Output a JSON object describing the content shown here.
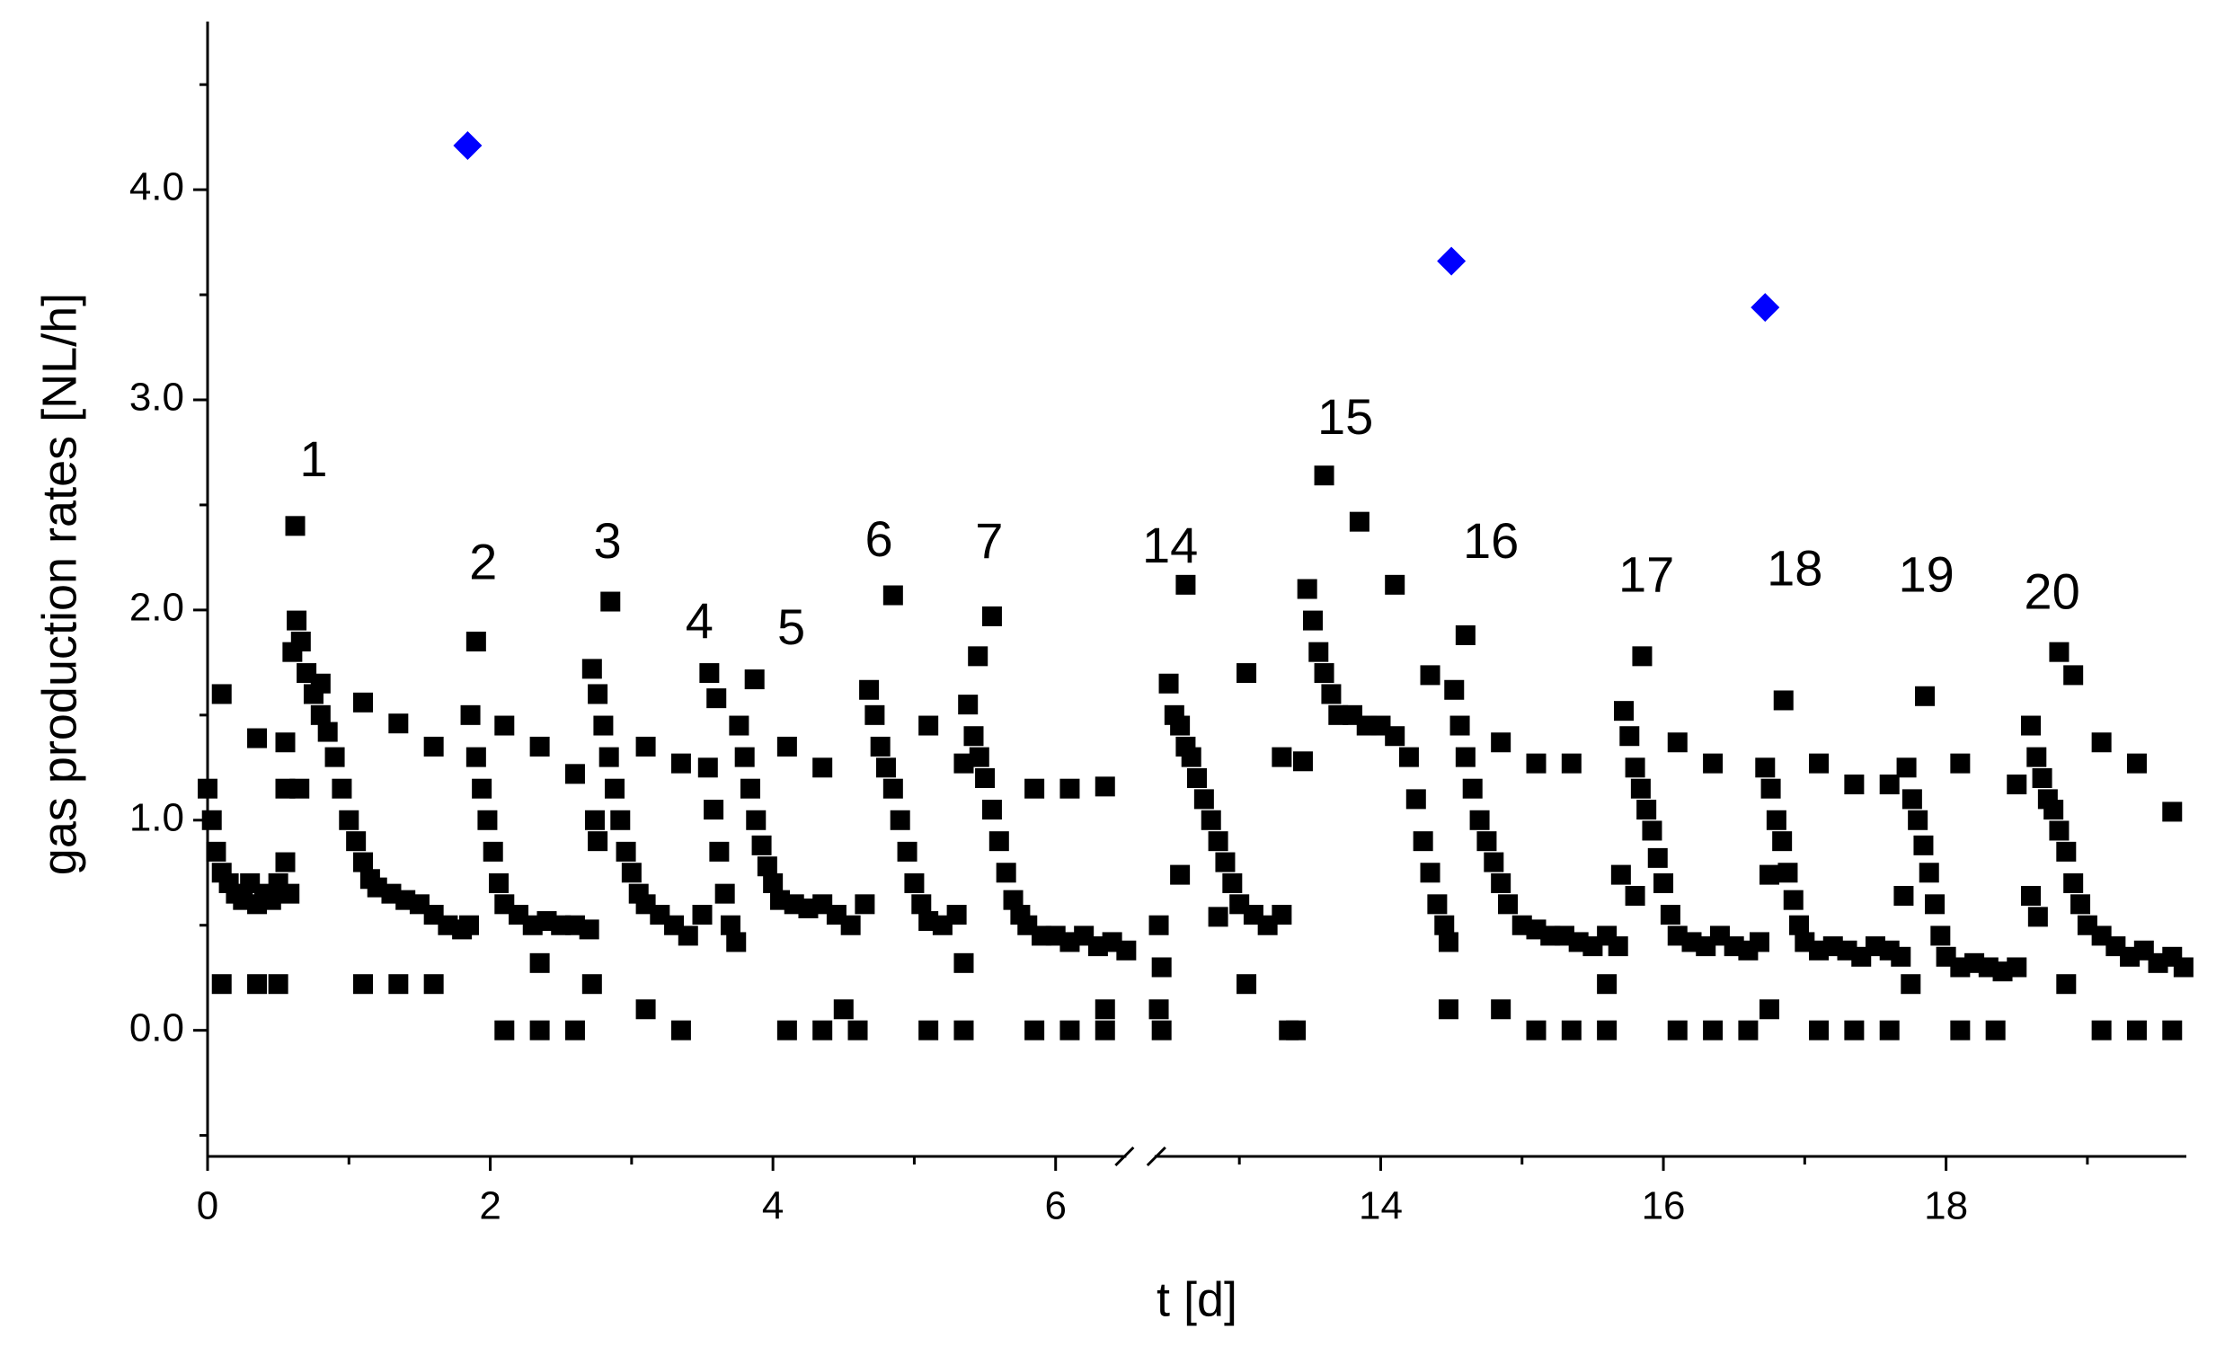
{
  "chart_data": {
    "type": "scatter",
    "xlabel": "t [d]",
    "ylabel": "gas production rates [NL/h]",
    "xlim": [
      0,
      19.7
    ],
    "xbreak": [
      6.5,
      12.4
    ],
    "ylim": [
      -0.6,
      4.8
    ],
    "xticks": [
      0,
      2,
      4,
      6,
      14,
      16,
      18
    ],
    "xminorticks": [
      1,
      3,
      5,
      13,
      15,
      17,
      19
    ],
    "yticks": [
      {
        "value": 0,
        "label": "0.0"
      },
      {
        "value": 1,
        "label": "1.0"
      },
      {
        "value": 2,
        "label": "2.0"
      },
      {
        "value": 3,
        "label": "3.0"
      },
      {
        "value": 4,
        "label": "4.0"
      }
    ],
    "yminorticks": [
      -0.5,
      0.5,
      1.5,
      2.5,
      3.5,
      4.5
    ],
    "series": [
      {
        "color": "#000000",
        "marker": "square",
        "x": [
          0,
          0.03,
          0.06,
          0.1,
          0.15,
          0.2,
          0.25,
          0.3,
          0.35,
          0.4,
          0.45,
          0.5,
          0.55,
          0.58,
          0.1,
          0.1,
          0.35,
          0.35,
          0.5,
          0.55,
          0.55,
          0.6,
          0.63,
          0.66,
          0.7,
          0.75,
          0.8,
          0.85,
          0.9,
          0.95,
          1.0,
          1.05,
          1.1,
          1.15,
          1.2,
          1.3,
          1.4,
          1.5,
          1.6,
          1.7,
          1.8,
          1.85,
          0.62,
          0.65,
          0.8,
          1.1,
          1.1,
          1.35,
          1.35,
          1.6,
          1.6,
          1.86,
          1.9,
          1.94,
          1.98,
          2.02,
          2.06,
          2.1,
          2.2,
          2.3,
          2.4,
          2.5,
          2.6,
          2.7,
          1.9,
          2.1,
          2.1,
          2.35,
          2.35,
          2.35,
          2.6,
          2.6,
          2.72,
          2.72,
          2.76,
          2.8,
          2.84,
          2.88,
          2.92,
          2.96,
          3.0,
          3.05,
          3.1,
          3.2,
          3.3,
          3.4,
          3.5,
          2.85,
          2.74,
          2.76,
          3.1,
          3.1,
          3.35,
          3.35,
          3.54,
          3.58,
          3.62,
          3.66,
          3.7,
          3.74,
          3.55,
          3.6,
          3.76,
          3.8,
          3.84,
          3.88,
          3.92,
          3.96,
          4.0,
          4.05,
          4.15,
          4.25,
          4.35,
          4.45,
          4.55,
          4.65,
          3.87,
          4.1,
          4.1,
          4.35,
          4.35,
          4.5,
          4.6,
          4.68,
          4.72,
          4.76,
          4.8,
          4.85,
          4.9,
          4.95,
          5.0,
          5.05,
          5.1,
          5.2,
          5.3,
          4.85,
          5.1,
          5.1,
          5.35,
          5.35,
          5.35,
          5.38,
          5.42,
          5.46,
          5.5,
          5.55,
          5.6,
          5.65,
          5.7,
          5.75,
          5.8,
          5.9,
          6.0,
          6.1,
          6.2,
          6.3,
          6.4,
          6.5,
          5.45,
          5.55,
          5.85,
          5.85,
          6.1,
          6.1,
          6.35,
          6.35,
          6.35,
          12.43,
          12.43,
          12.45,
          12.45,
          12.5,
          12.54,
          12.58,
          12.62,
          12.66,
          12.7,
          12.75,
          12.8,
          12.85,
          12.9,
          12.95,
          13.0,
          13.1,
          13.2,
          13.3,
          12.58,
          12.62,
          12.85,
          13.05,
          13.05,
          13.3,
          13.35,
          13.4,
          13.45,
          13.48,
          13.52,
          13.56,
          13.6,
          13.65,
          13.7,
          13.8,
          13.9,
          14.0,
          14.1,
          14.2,
          14.25,
          14.3,
          14.35,
          14.4,
          14.45,
          13.6,
          13.85,
          14.1,
          14.35,
          14.48,
          14.48,
          14.52,
          14.56,
          14.6,
          14.65,
          14.7,
          14.75,
          14.8,
          14.85,
          14.9,
          15.0,
          15.1,
          15.2,
          15.3,
          15.4,
          15.5,
          15.6,
          15.68,
          14.6,
          14.85,
          14.85,
          15.1,
          15.1,
          15.35,
          15.35,
          15.6,
          15.6,
          15.72,
          15.76,
          15.8,
          15.84,
          15.88,
          15.92,
          15.96,
          16.0,
          16.05,
          16.1,
          16.2,
          16.3,
          16.4,
          16.5,
          16.6,
          16.68,
          15.85,
          15.7,
          15.8,
          16.1,
          16.1,
          16.35,
          16.35,
          16.6,
          16.72,
          16.76,
          16.8,
          16.84,
          16.88,
          16.92,
          16.96,
          17.0,
          17.1,
          17.2,
          17.3,
          17.4,
          17.5,
          17.6,
          17.68,
          16.85,
          16.75,
          16.75,
          17.1,
          17.1,
          17.35,
          17.35,
          17.6,
          17.6,
          17.72,
          17.76,
          17.8,
          17.84,
          17.88,
          17.92,
          17.96,
          18.0,
          18.1,
          18.2,
          18.3,
          18.4,
          18.5,
          17.85,
          17.7,
          17.75,
          18.1,
          18.1,
          18.35,
          18.5,
          18.6,
          18.64,
          18.68,
          18.72,
          18.76,
          18.8,
          18.85,
          18.9,
          18.95,
          19.0,
          19.1,
          19.2,
          19.3,
          19.4,
          19.5,
          19.6,
          19.68,
          18.8,
          18.9,
          18.6,
          18.65,
          18.85,
          19.1,
          19.1,
          19.35,
          19.35,
          19.6,
          19.6
        ],
        "values": [
          1.15,
          1.0,
          0.85,
          0.75,
          0.7,
          0.65,
          0.62,
          0.7,
          0.6,
          0.65,
          0.62,
          0.7,
          0.8,
          0.65,
          1.6,
          0.22,
          1.39,
          0.22,
          0.22,
          1.37,
          1.15,
          1.8,
          1.95,
          1.85,
          1.7,
          1.6,
          1.5,
          1.42,
          1.3,
          1.15,
          1.0,
          0.9,
          0.8,
          0.72,
          0.68,
          0.65,
          0.62,
          0.6,
          0.55,
          0.5,
          0.48,
          0.5,
          2.4,
          1.15,
          1.65,
          1.56,
          0.22,
          1.46,
          0.22,
          1.35,
          0.22,
          1.5,
          1.3,
          1.15,
          1.0,
          0.85,
          0.7,
          0.6,
          0.55,
          0.5,
          0.52,
          0.5,
          0.5,
          0.48,
          1.85,
          0.0,
          1.45,
          1.35,
          0.0,
          0.32,
          1.22,
          0.0,
          0.22,
          1.72,
          1.6,
          1.45,
          1.3,
          1.15,
          1.0,
          0.85,
          0.75,
          0.65,
          0.6,
          0.55,
          0.5,
          0.45,
          0.55,
          2.04,
          1.0,
          0.9,
          1.35,
          0.1,
          1.27,
          0.0,
          1.25,
          1.05,
          0.85,
          0.65,
          0.5,
          0.42,
          1.7,
          1.58,
          1.45,
          1.3,
          1.15,
          1.0,
          0.88,
          0.78,
          0.7,
          0.62,
          0.6,
          0.58,
          0.6,
          0.55,
          0.5,
          0.6,
          1.67,
          1.35,
          0.0,
          1.25,
          0.0,
          0.1,
          0.0,
          1.62,
          1.5,
          1.35,
          1.25,
          1.15,
          1.0,
          0.85,
          0.7,
          0.6,
          0.52,
          0.5,
          0.55,
          2.07,
          1.45,
          0.0,
          1.27,
          0.0,
          0.32,
          1.55,
          1.4,
          1.3,
          1.2,
          1.05,
          0.9,
          0.75,
          0.62,
          0.55,
          0.5,
          0.45,
          0.45,
          0.42,
          0.45,
          0.4,
          0.42,
          0.38,
          1.78,
          1.97,
          1.15,
          0.0,
          1.15,
          0.0,
          1.16,
          0.1,
          0.0,
          0.5,
          0.1,
          0.0,
          0.3,
          1.65,
          1.5,
          1.45,
          1.35,
          1.3,
          1.2,
          1.1,
          1.0,
          0.9,
          0.8,
          0.7,
          0.6,
          0.55,
          0.5,
          0.55,
          0.74,
          2.12,
          0.54,
          1.7,
          0.22,
          1.3,
          0.0,
          0.0,
          1.28,
          2.1,
          1.95,
          1.8,
          1.7,
          1.6,
          1.5,
          1.5,
          1.45,
          1.45,
          1.4,
          1.3,
          1.1,
          0.9,
          0.75,
          0.6,
          0.5,
          2.64,
          2.42,
          2.12,
          1.69,
          0.1,
          0.42,
          1.62,
          1.45,
          1.3,
          1.15,
          1.0,
          0.9,
          0.8,
          0.7,
          0.6,
          0.5,
          0.48,
          0.45,
          0.45,
          0.42,
          0.4,
          0.45,
          0.4,
          1.88,
          1.37,
          0.1,
          1.27,
          0.0,
          1.27,
          0.0,
          0.0,
          0.22,
          1.52,
          1.4,
          1.25,
          1.15,
          1.05,
          0.95,
          0.82,
          0.7,
          0.55,
          0.45,
          0.42,
          0.4,
          0.45,
          0.4,
          0.38,
          0.42,
          1.78,
          0.74,
          0.64,
          1.37,
          0.0,
          1.27,
          0.0,
          0.0,
          1.25,
          1.15,
          1.0,
          0.9,
          0.75,
          0.62,
          0.5,
          0.42,
          0.38,
          0.4,
          0.38,
          0.35,
          0.4,
          0.38,
          0.35,
          1.57,
          0.1,
          0.74,
          1.27,
          0.0,
          1.17,
          0.0,
          0.0,
          1.17,
          1.25,
          1.1,
          1.0,
          0.88,
          0.75,
          0.6,
          0.45,
          0.35,
          0.3,
          0.32,
          0.3,
          0.28,
          0.3,
          1.59,
          0.64,
          0.22,
          1.27,
          0.0,
          0.0,
          1.17,
          1.45,
          1.3,
          1.2,
          1.1,
          1.05,
          0.95,
          0.85,
          0.7,
          0.6,
          0.5,
          0.45,
          0.4,
          0.35,
          0.38,
          0.32,
          0.35,
          0.3,
          1.8,
          1.69,
          0.64,
          0.54,
          0.22,
          1.37,
          0.0,
          1.27,
          0.0,
          1.04,
          0.0
        ]
      },
      {
        "color": "#0000ff",
        "marker": "diamond",
        "x": [
          1.84,
          14.5,
          16.72
        ],
        "values": [
          4.21,
          3.66,
          3.44
        ]
      }
    ],
    "annotations": [
      {
        "label": "1",
        "x": 0.75,
        "y": 2.7
      },
      {
        "label": "2",
        "x": 1.95,
        "y": 2.21
      },
      {
        "label": "3",
        "x": 2.83,
        "y": 2.31
      },
      {
        "label": "4",
        "x": 3.48,
        "y": 1.93
      },
      {
        "label": "5",
        "x": 4.13,
        "y": 1.9
      },
      {
        "label": "6",
        "x": 4.75,
        "y": 2.32
      },
      {
        "label": "7",
        "x": 5.53,
        "y": 2.31
      },
      {
        "label": "14",
        "x": 12.51,
        "y": 2.29
      },
      {
        "label": "15",
        "x": 13.75,
        "y": 2.9
      },
      {
        "label": "16",
        "x": 14.78,
        "y": 2.31
      },
      {
        "label": "17",
        "x": 15.88,
        "y": 2.15
      },
      {
        "label": "18",
        "x": 16.93,
        "y": 2.18
      },
      {
        "label": "19",
        "x": 17.86,
        "y": 2.15
      },
      {
        "label": "20",
        "x": 18.75,
        "y": 2.07
      }
    ]
  }
}
